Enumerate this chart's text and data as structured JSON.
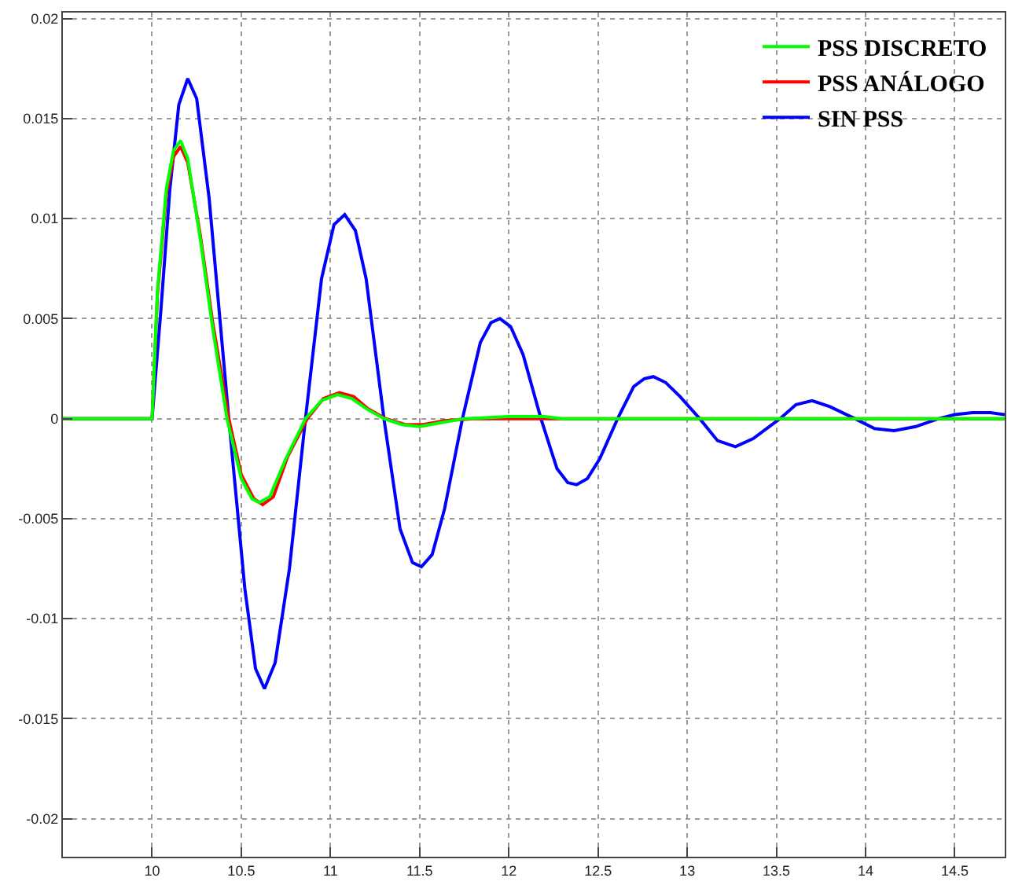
{
  "chart_data": {
    "type": "line",
    "xlim": [
      9.5,
      14.78
    ],
    "ylim": [
      -0.0219,
      0.0203
    ],
    "xticks": [
      10,
      10.5,
      11,
      11.5,
      12,
      12.5,
      13,
      13.5,
      14,
      14.5
    ],
    "yticks": [
      -0.02,
      -0.015,
      -0.01,
      -0.005,
      0,
      0.005,
      0.01,
      0.015,
      0.02
    ],
    "grid": true,
    "legend": "top right",
    "marker": "none",
    "line_style": "solid",
    "series": [
      {
        "name": "SIN PSS",
        "color": "#0000ff",
        "x": [
          9.5,
          10.0,
          10.05,
          10.1,
          10.15,
          10.2,
          10.25,
          10.32,
          10.43,
          10.52,
          10.58,
          10.63,
          10.69,
          10.77,
          10.86,
          10.95,
          11.02,
          11.08,
          11.14,
          11.2,
          11.3,
          11.39,
          11.46,
          11.51,
          11.57,
          11.64,
          11.74,
          11.84,
          11.9,
          11.95,
          12.01,
          12.08,
          12.18,
          12.27,
          12.33,
          12.38,
          12.44,
          12.51,
          12.61,
          12.7,
          12.76,
          12.81,
          12.88,
          12.96,
          13.07,
          13.17,
          13.27,
          13.37,
          13.52,
          13.61,
          13.7,
          13.8,
          13.94,
          14.05,
          14.16,
          14.28,
          14.41,
          14.5,
          14.6,
          14.7,
          14.78
        ],
        "values": [
          0,
          0,
          0.0055,
          0.0115,
          0.0157,
          0.017,
          0.016,
          0.011,
          0,
          -0.0085,
          -0.0125,
          -0.0135,
          -0.0122,
          -0.0075,
          0,
          0.007,
          0.0097,
          0.0102,
          0.0094,
          0.007,
          0,
          -0.0055,
          -0.0072,
          -0.0074,
          -0.0068,
          -0.0045,
          0,
          0.0038,
          0.0048,
          0.005,
          0.0046,
          0.0032,
          0,
          -0.0025,
          -0.0032,
          -0.0033,
          -0.003,
          -0.002,
          0,
          0.0016,
          0.002,
          0.0021,
          0.0018,
          0.0011,
          0,
          -0.0011,
          -0.0014,
          -0.001,
          0,
          0.0007,
          0.0009,
          0.0006,
          0,
          -0.0005,
          -0.0006,
          -0.0004,
          0,
          0.0002,
          0.0003,
          0.0003,
          0.0002
        ]
      },
      {
        "name": "PSS ANÁLOGO",
        "color": "#ff0000",
        "x": [
          9.5,
          10.0,
          10.03,
          10.08,
          10.12,
          10.16,
          10.2,
          10.27,
          10.34,
          10.43,
          10.5,
          10.57,
          10.62,
          10.68,
          10.76,
          10.87,
          10.96,
          11.05,
          11.13,
          11.21,
          11.31,
          11.42,
          11.52,
          11.64,
          11.8,
          14.78
        ],
        "values": [
          0,
          0,
          0.0062,
          0.0112,
          0.0131,
          0.0136,
          0.0128,
          0.0092,
          0.0048,
          0,
          -0.0028,
          -0.004,
          -0.0043,
          -0.0039,
          -0.0019,
          0,
          0.001,
          0.0013,
          0.0011,
          0.0005,
          0,
          -0.0003,
          -0.0003,
          -0.0001,
          0,
          0
        ]
      },
      {
        "name": "PSS DISCRETO",
        "color": "#00ff00",
        "x": [
          9.5,
          10.0,
          10.03,
          10.08,
          10.12,
          10.16,
          10.2,
          10.27,
          10.34,
          10.42,
          10.5,
          10.56,
          10.6,
          10.66,
          10.75,
          10.86,
          10.95,
          11.04,
          11.12,
          11.2,
          11.3,
          11.4,
          11.5,
          11.62,
          11.75,
          12.0,
          12.2,
          12.3,
          14.78
        ],
        "values": [
          0,
          0,
          0.0064,
          0.0115,
          0.0134,
          0.0139,
          0.013,
          0.009,
          0.0045,
          0,
          -0.003,
          -0.004,
          -0.0042,
          -0.0039,
          -0.002,
          0,
          0.0009,
          0.0012,
          0.001,
          0.0005,
          0,
          -0.0003,
          -0.0004,
          -0.0002,
          0,
          0.0001,
          0.0001,
          0,
          0
        ]
      }
    ]
  }
}
